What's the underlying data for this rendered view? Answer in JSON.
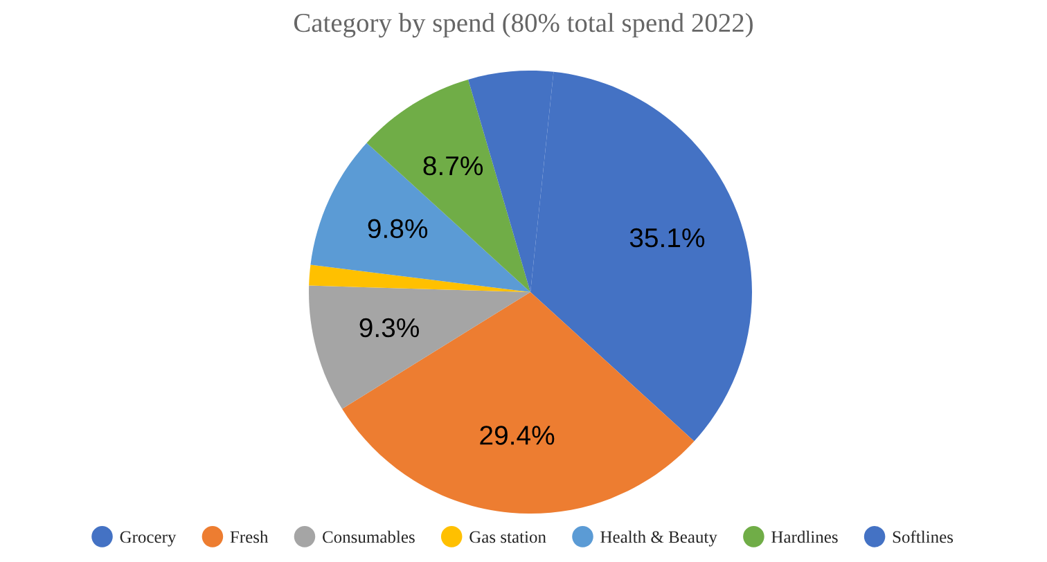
{
  "chart_data": {
    "type": "pie",
    "title": "Category by spend (80% total spend 2022)",
    "categories": [
      "Grocery",
      "Fresh",
      "Consumables",
      "Gas station",
      "Health & Beauty",
      "Hardlines",
      "Softlines"
    ],
    "values": [
      35.1,
      29.4,
      9.3,
      1.5,
      9.8,
      8.7,
      6.2
    ],
    "value_labels": [
      "35.1%",
      "29.4%",
      "9.3%",
      null,
      "9.8%",
      "8.7%",
      null
    ],
    "colors": [
      "#4472c4",
      "#ed7d31",
      "#a5a5a5",
      "#ffc000",
      "#5b9bd5",
      "#70ad47",
      "#4472c4"
    ],
    "legend": "bottom"
  }
}
